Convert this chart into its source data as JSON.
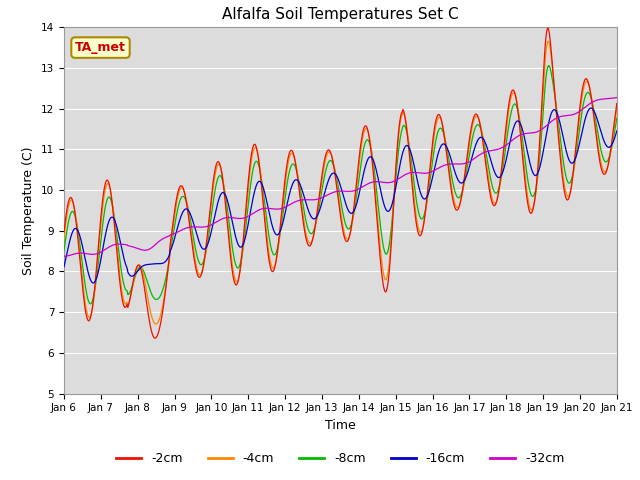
{
  "title": "Alfalfa Soil Temperatures Set C",
  "xlabel": "Time",
  "ylabel": "Soil Temperature (C)",
  "ylim": [
    5.0,
    14.0
  ],
  "yticks": [
    5.0,
    6.0,
    7.0,
    8.0,
    9.0,
    10.0,
    11.0,
    12.0,
    13.0,
    14.0
  ],
  "bg_color": "#dcdcdc",
  "annotation_text": "TA_met",
  "annotation_bg": "#ffffcc",
  "annotation_border": "#aa8800",
  "annotation_text_color": "#cc0000",
  "line_colors": {
    "-2cm": "#ee1100",
    "-4cm": "#ff8800",
    "-8cm": "#00bb00",
    "-16cm": "#0000cc",
    "-32cm": "#cc00cc"
  },
  "legend_labels": [
    "-2cm",
    "-4cm",
    "-8cm",
    "-16cm",
    "-32cm"
  ],
  "x_tick_labels": [
    "Jan 6",
    "Jan 7",
    "Jan 8",
    "Jan 9",
    "Jan 10",
    "Jan 11",
    "Jan 12",
    "Jan 13",
    "Jan 14",
    "Jan 15",
    "Jan 16",
    "Jan 17",
    "Jan 18",
    "Jan 19",
    "Jan 20",
    "Jan 21"
  ]
}
